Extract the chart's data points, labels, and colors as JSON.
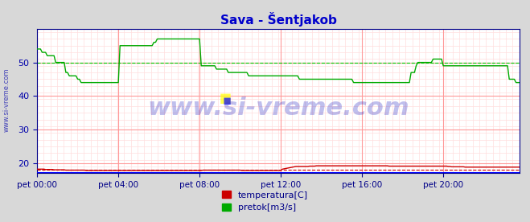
{
  "title": "Sava - Šentjakob",
  "title_color": "#0000cc",
  "bg_color": "#d8d8d8",
  "plot_bg_color": "#ffffff",
  "grid_color_major": "#ff9999",
  "grid_color_minor": "#ffdddd",
  "ylabel_left_color": "#0000aa",
  "watermark_text": "www.si-vreme.com",
  "watermark_color": "#0000bb",
  "watermark_alpha": 0.25,
  "xlabel_color": "#000088",
  "yticks": [
    20,
    30,
    40,
    50
  ],
  "ylim": [
    17,
    60
  ],
  "xtick_labels": [
    "pet 00:00",
    "pet 04:00",
    "pet 08:00",
    "pet 12:00",
    "pet 16:00",
    "pet 20:00"
  ],
  "xtick_positions": [
    0,
    48,
    96,
    144,
    192,
    240
  ],
  "total_points": 288,
  "temp_color": "#cc0000",
  "flow_color": "#00aa00",
  "blue_baseline_color": "#0000ff",
  "dashed_line_value": 18.0,
  "dashed_line_color": "#cc0000",
  "dashed_line_style": "--",
  "dashed_flow_value": 50.0,
  "dashed_flow_color": "#00cc00",
  "left_label": "www.si-vreme.com",
  "legend_temp_label": "temperatura[C]",
  "legend_flow_label": "pretok[m3/s]",
  "temp_data": [
    18.2,
    18.2,
    18.2,
    18.2,
    18.2,
    18.1,
    18.1,
    18.1,
    18.1,
    18.1,
    18.0,
    18.0,
    18.0,
    18.0,
    18.0,
    18.0,
    18.0,
    17.9,
    17.9,
    17.9,
    17.9,
    17.9,
    17.9,
    17.9,
    17.9,
    17.9,
    17.9,
    17.9,
    17.9,
    17.8,
    17.8,
    17.8,
    17.8,
    17.8,
    17.8,
    17.8,
    17.8,
    17.8,
    17.8,
    17.8,
    17.8,
    17.8,
    17.8,
    17.8,
    17.8,
    17.8,
    17.8,
    17.8,
    17.8,
    17.8,
    17.8,
    17.8,
    17.8,
    17.8,
    17.8,
    17.8,
    17.8,
    17.8,
    17.8,
    17.8,
    17.8,
    17.8,
    17.8,
    17.8,
    17.8,
    17.8,
    17.8,
    17.8,
    17.8,
    17.8,
    17.8,
    17.8,
    17.8,
    17.8,
    17.8,
    17.8,
    17.8,
    17.8,
    17.8,
    17.8,
    17.8,
    17.8,
    17.8,
    17.8,
    17.8,
    17.8,
    17.8,
    17.8,
    17.8,
    17.8,
    17.8,
    17.8,
    17.8,
    17.8,
    17.8,
    17.8,
    17.8,
    17.8,
    17.9,
    17.9,
    17.9,
    17.9,
    17.9,
    17.9,
    17.9,
    17.9,
    17.9,
    17.9,
    17.9,
    17.9,
    17.9,
    17.9,
    17.9,
    17.9,
    17.9,
    17.9,
    17.9,
    17.9,
    17.9,
    17.9,
    17.9,
    17.8,
    17.8,
    17.8,
    17.8,
    17.8,
    17.8,
    17.8,
    17.8,
    17.8,
    17.8,
    17.8,
    17.8,
    17.8,
    17.8,
    17.8,
    17.8,
    17.8,
    17.8,
    17.8,
    17.8,
    17.8,
    17.8,
    17.8,
    17.8,
    18.2,
    18.3,
    18.4,
    18.5,
    18.6,
    18.7,
    18.8,
    18.9,
    19.0,
    19.0,
    19.0,
    19.0,
    19.0,
    19.0,
    19.0,
    19.0,
    19.1,
    19.1,
    19.1,
    19.1,
    19.2,
    19.2,
    19.2,
    19.2,
    19.2,
    19.2,
    19.2,
    19.2,
    19.2,
    19.2,
    19.2,
    19.2,
    19.2,
    19.2,
    19.2,
    19.2,
    19.2,
    19.2,
    19.2,
    19.2,
    19.2,
    19.2,
    19.2,
    19.2,
    19.2,
    19.2,
    19.2,
    19.2,
    19.2,
    19.2,
    19.2,
    19.2,
    19.2,
    19.2,
    19.2,
    19.2,
    19.2,
    19.2,
    19.2,
    19.2,
    19.2,
    19.2,
    19.2,
    19.1,
    19.1,
    19.1,
    19.1,
    19.1,
    19.1,
    19.1,
    19.1,
    19.1,
    19.1,
    19.1,
    19.1,
    19.1,
    19.1,
    19.1,
    19.1,
    19.1,
    19.1,
    19.1,
    19.1,
    19.1,
    19.1,
    19.1,
    19.1,
    19.1,
    19.1,
    19.1,
    19.1,
    19.1,
    19.1,
    19.1,
    19.1,
    19.1,
    19.1,
    19.1,
    19.0,
    19.0,
    18.9,
    18.9,
    18.9,
    18.9,
    18.9,
    18.9,
    18.9,
    18.9,
    18.8,
    18.8,
    18.8,
    18.8,
    18.8,
    18.8,
    18.8,
    18.8,
    18.8,
    18.8,
    18.8,
    18.8,
    18.8,
    18.8,
    18.8,
    18.8,
    18.8,
    18.8,
    18.8,
    18.8,
    18.8,
    18.8,
    18.8,
    18.8,
    18.8,
    18.8,
    18.8,
    18.8,
    18.8,
    18.8,
    18.8,
    18.8,
    18.8
  ],
  "flow_data": [
    54.0,
    54.0,
    54.0,
    53.0,
    53.0,
    53.0,
    52.0,
    52.0,
    52.0,
    52.0,
    52.0,
    50.0,
    50.0,
    50.0,
    50.0,
    50.0,
    50.0,
    47.0,
    47.0,
    46.0,
    46.0,
    46.0,
    46.0,
    46.0,
    45.0,
    45.0,
    44.0,
    44.0,
    44.0,
    44.0,
    44.0,
    44.0,
    44.0,
    44.0,
    44.0,
    44.0,
    44.0,
    44.0,
    44.0,
    44.0,
    44.0,
    44.0,
    44.0,
    44.0,
    44.0,
    44.0,
    44.0,
    44.0,
    44.0,
    55.0,
    55.0,
    55.0,
    55.0,
    55.0,
    55.0,
    55.0,
    55.0,
    55.0,
    55.0,
    55.0,
    55.0,
    55.0,
    55.0,
    55.0,
    55.0,
    55.0,
    55.0,
    55.0,
    55.0,
    56.0,
    56.0,
    57.0,
    57.0,
    57.0,
    57.0,
    57.0,
    57.0,
    57.0,
    57.0,
    57.0,
    57.0,
    57.0,
    57.0,
    57.0,
    57.0,
    57.0,
    57.0,
    57.0,
    57.0,
    57.0,
    57.0,
    57.0,
    57.0,
    57.0,
    57.0,
    57.0,
    57.0,
    49.0,
    49.0,
    49.0,
    49.0,
    49.0,
    49.0,
    49.0,
    49.0,
    49.0,
    48.0,
    48.0,
    48.0,
    48.0,
    48.0,
    48.0,
    48.0,
    47.0,
    47.0,
    47.0,
    47.0,
    47.0,
    47.0,
    47.0,
    47.0,
    47.0,
    47.0,
    47.0,
    47.0,
    46.0,
    46.0,
    46.0,
    46.0,
    46.0,
    46.0,
    46.0,
    46.0,
    46.0,
    46.0,
    46.0,
    46.0,
    46.0,
    46.0,
    46.0,
    46.0,
    46.0,
    46.0,
    46.0,
    46.0,
    46.0,
    46.0,
    46.0,
    46.0,
    46.0,
    46.0,
    46.0,
    46.0,
    46.0,
    46.0,
    45.0,
    45.0,
    45.0,
    45.0,
    45.0,
    45.0,
    45.0,
    45.0,
    45.0,
    45.0,
    45.0,
    45.0,
    45.0,
    45.0,
    45.0,
    45.0,
    45.0,
    45.0,
    45.0,
    45.0,
    45.0,
    45.0,
    45.0,
    45.0,
    45.0,
    45.0,
    45.0,
    45.0,
    45.0,
    45.0,
    45.0,
    45.0,
    44.0,
    44.0,
    44.0,
    44.0,
    44.0,
    44.0,
    44.0,
    44.0,
    44.0,
    44.0,
    44.0,
    44.0,
    44.0,
    44.0,
    44.0,
    44.0,
    44.0,
    44.0,
    44.0,
    44.0,
    44.0,
    44.0,
    44.0,
    44.0,
    44.0,
    44.0,
    44.0,
    44.0,
    44.0,
    44.0,
    44.0,
    44.0,
    44.0,
    44.0,
    47.0,
    47.0,
    47.0,
    49.0,
    50.0,
    50.0,
    50.0,
    50.0,
    50.0,
    50.0,
    50.0,
    50.0,
    50.0,
    51.0,
    51.0,
    51.0,
    51.0,
    51.0,
    51.0,
    49.0,
    49.0,
    49.0,
    49.0,
    49.0,
    49.0,
    49.0,
    49.0,
    49.0,
    49.0,
    49.0,
    49.0,
    49.0,
    49.0,
    49.0,
    49.0,
    49.0,
    49.0,
    49.0,
    49.0,
    49.0,
    49.0,
    49.0,
    49.0,
    49.0,
    49.0,
    49.0,
    49.0,
    49.0,
    49.0,
    49.0,
    49.0,
    49.0,
    49.0,
    49.0,
    49.0,
    49.0,
    49.0,
    49.0,
    45.0,
    45.0,
    45.0,
    45.0,
    44.0,
    44.0,
    44.0
  ]
}
